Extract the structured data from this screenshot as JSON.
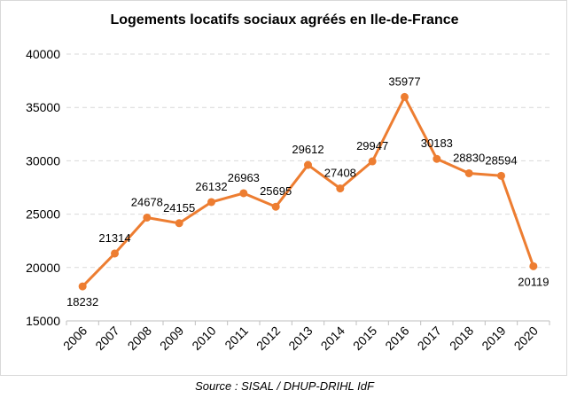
{
  "chart_data": {
    "type": "line",
    "title": "Logements locatifs sociaux agréés en Ile-de-France",
    "xlabel": "",
    "ylabel": "",
    "x": [
      "2006",
      "2007",
      "2008",
      "2009",
      "2010",
      "2011",
      "2012",
      "2013",
      "2014",
      "2015",
      "2016",
      "2017",
      "2018",
      "2019",
      "2020"
    ],
    "series": [
      {
        "name": "Logements locatifs sociaux agréés",
        "values": [
          18232,
          21314,
          24678,
          24155,
          26132,
          26963,
          25695,
          29612,
          27408,
          29947,
          35977,
          30183,
          28830,
          28594,
          20119
        ]
      }
    ],
    "data_labels": [
      "18232",
      "21314",
      "24678",
      "24155",
      "26132",
      "26963",
      "25695",
      "29612",
      "27408",
      "29947",
      "35977",
      "30183",
      "28830",
      "28594",
      "20119"
    ],
    "ylim": [
      15000,
      40000
    ],
    "y_ticks": [
      "15000",
      "20000",
      "25000",
      "30000",
      "35000",
      "40000"
    ],
    "grid": true,
    "color": "#ED7D31",
    "grid_color": "#D9D9D9"
  },
  "source": "Source : SISAL / DHUP-DRIHL IdF"
}
